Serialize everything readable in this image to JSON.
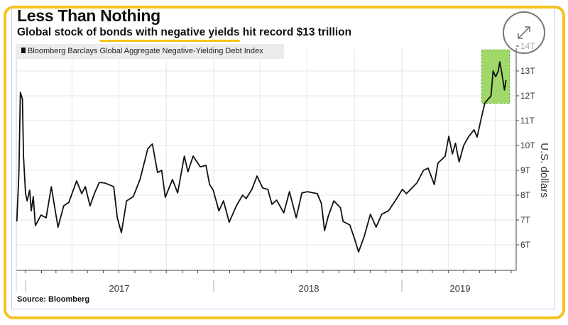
{
  "header": {
    "title": "Less Than Nothing",
    "subtitle_pre": "Global stock of ",
    "subtitle_highlight": "bonds with negative yields",
    "subtitle_post": " hit record $13 trillion",
    "highlight_color": "#f7c21a"
  },
  "legend": {
    "label": "Bloomberg Barclays Global Aggregate Negative-Yielding Debt Index"
  },
  "source": "Source: Bloomberg",
  "expand_icon": "expand-arrows-icon",
  "chart_data": {
    "type": "line",
    "title": "Less Than Nothing",
    "subtitle": "Global stock of bonds with negative yields hit record $13 trillion",
    "ylabel": "U.S. dollars",
    "ylim": [
      5,
      14
    ],
    "yticks": [
      "6T",
      "7T",
      "8T",
      "9T",
      "10T",
      "11T",
      "12T",
      "13T",
      "14T"
    ],
    "ytick_values": [
      6,
      7,
      8,
      9,
      10,
      11,
      12,
      13,
      14
    ],
    "xlim": [
      "2016-12-15",
      "2019-08-10"
    ],
    "xtick_labels": [
      "2017",
      "2018",
      "2019"
    ],
    "grid": true,
    "legend_position": "top-left",
    "line_color": "#111111",
    "highlight_box": {
      "x": [
        "2019-06-05",
        "2019-07-29"
      ],
      "y": [
        11.7,
        13.85
      ],
      "color": "#8fd14f"
    },
    "series": [
      {
        "name": "Bloomberg Barclays Global Aggregate Negative-Yielding Debt Index",
        "points": [
          [
            "2016-12-15",
            6.94
          ],
          [
            "2016-12-19",
            8.86
          ],
          [
            "2016-12-22",
            12.14
          ],
          [
            "2016-12-26",
            11.86
          ],
          [
            "2016-12-28",
            9.57
          ],
          [
            "2017-01-01",
            8.06
          ],
          [
            "2017-01-04",
            7.77
          ],
          [
            "2017-01-09",
            8.2
          ],
          [
            "2017-01-12",
            7.37
          ],
          [
            "2017-01-16",
            7.94
          ],
          [
            "2017-01-20",
            6.77
          ],
          [
            "2017-01-31",
            7.2
          ],
          [
            "2017-02-10",
            7.09
          ],
          [
            "2017-02-20",
            8.34
          ],
          [
            "2017-02-26",
            7.57
          ],
          [
            "2017-03-05",
            6.71
          ],
          [
            "2017-03-16",
            7.57
          ],
          [
            "2017-03-26",
            7.71
          ],
          [
            "2017-04-10",
            8.57
          ],
          [
            "2017-04-20",
            8.06
          ],
          [
            "2017-04-27",
            8.34
          ],
          [
            "2017-05-06",
            7.57
          ],
          [
            "2017-05-15",
            8.09
          ],
          [
            "2017-05-24",
            8.51
          ],
          [
            "2017-06-04",
            8.49
          ],
          [
            "2017-06-21",
            8.34
          ],
          [
            "2017-06-28",
            7.09
          ],
          [
            "2017-07-06",
            6.49
          ],
          [
            "2017-07-16",
            7.77
          ],
          [
            "2017-07-29",
            7.94
          ],
          [
            "2017-08-11",
            8.63
          ],
          [
            "2017-08-26",
            9.86
          ],
          [
            "2017-09-04",
            10.06
          ],
          [
            "2017-09-14",
            8.91
          ],
          [
            "2017-09-22",
            9.0
          ],
          [
            "2017-09-29",
            7.91
          ],
          [
            "2017-10-13",
            8.63
          ],
          [
            "2017-10-23",
            8.09
          ],
          [
            "2017-11-05",
            9.57
          ],
          [
            "2017-11-12",
            8.94
          ],
          [
            "2017-11-22",
            9.57
          ],
          [
            "2017-12-06",
            9.14
          ],
          [
            "2017-12-17",
            9.2
          ],
          [
            "2017-12-24",
            8.43
          ],
          [
            "2017-12-31",
            8.2
          ],
          [
            "2018-01-11",
            7.37
          ],
          [
            "2018-01-20",
            7.77
          ],
          [
            "2018-01-31",
            6.91
          ],
          [
            "2018-02-14",
            7.57
          ],
          [
            "2018-02-26",
            8.0
          ],
          [
            "2018-03-05",
            7.86
          ],
          [
            "2018-03-16",
            8.23
          ],
          [
            "2018-03-26",
            8.77
          ],
          [
            "2018-04-06",
            8.29
          ],
          [
            "2018-04-16",
            8.23
          ],
          [
            "2018-04-24",
            7.63
          ],
          [
            "2018-05-03",
            7.8
          ],
          [
            "2018-05-17",
            7.29
          ],
          [
            "2018-05-28",
            8.14
          ],
          [
            "2018-06-10",
            7.09
          ],
          [
            "2018-06-21",
            8.09
          ],
          [
            "2018-07-02",
            8.14
          ],
          [
            "2018-07-21",
            8.06
          ],
          [
            "2018-07-29",
            7.66
          ],
          [
            "2018-08-04",
            6.57
          ],
          [
            "2018-08-11",
            7.14
          ],
          [
            "2018-08-22",
            7.77
          ],
          [
            "2018-09-04",
            7.49
          ],
          [
            "2018-09-09",
            6.94
          ],
          [
            "2018-09-22",
            6.8
          ],
          [
            "2018-10-02",
            6.2
          ],
          [
            "2018-10-09",
            5.71
          ],
          [
            "2018-10-20",
            6.34
          ],
          [
            "2018-11-01",
            7.23
          ],
          [
            "2018-11-12",
            6.71
          ],
          [
            "2018-11-23",
            7.23
          ],
          [
            "2018-12-06",
            7.37
          ],
          [
            "2018-12-19",
            7.77
          ],
          [
            "2019-01-02",
            8.23
          ],
          [
            "2019-01-10",
            8.06
          ],
          [
            "2019-01-30",
            8.49
          ],
          [
            "2019-02-12",
            9.0
          ],
          [
            "2019-02-21",
            9.09
          ],
          [
            "2019-03-05",
            8.43
          ],
          [
            "2019-03-12",
            9.29
          ],
          [
            "2019-03-26",
            9.57
          ],
          [
            "2019-04-02",
            10.37
          ],
          [
            "2019-04-09",
            9.66
          ],
          [
            "2019-04-15",
            10.09
          ],
          [
            "2019-04-22",
            9.34
          ],
          [
            "2019-05-01",
            10.0
          ],
          [
            "2019-05-10",
            10.34
          ],
          [
            "2019-05-21",
            10.63
          ],
          [
            "2019-05-27",
            10.34
          ],
          [
            "2019-06-04",
            11.09
          ],
          [
            "2019-06-11",
            11.71
          ],
          [
            "2019-06-23",
            12.0
          ],
          [
            "2019-06-27",
            13.0
          ],
          [
            "2019-07-02",
            12.77
          ],
          [
            "2019-07-07",
            13.0
          ],
          [
            "2019-07-10",
            13.37
          ],
          [
            "2019-07-14",
            12.91
          ],
          [
            "2019-07-19",
            12.23
          ],
          [
            "2019-07-22",
            12.63
          ]
        ]
      }
    ]
  }
}
